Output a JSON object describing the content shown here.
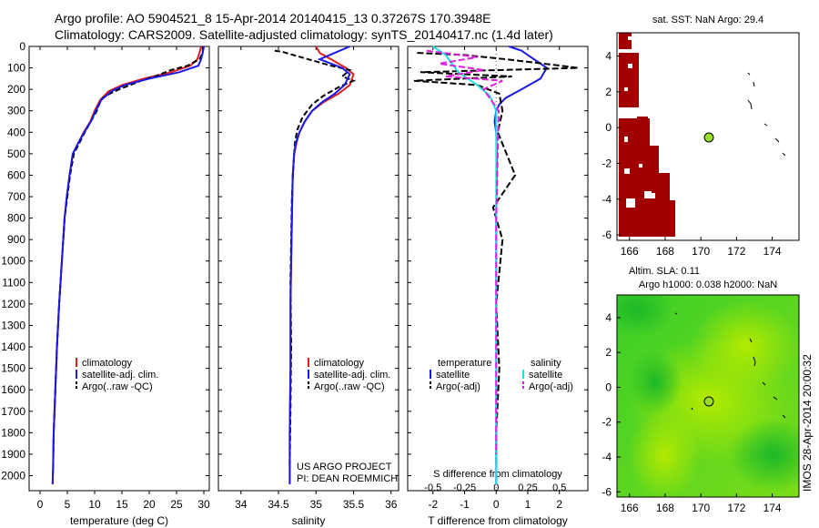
{
  "header": {
    "line1": "Argo profile: AO 5904521_8 15-Apr-2014 20140415_13 0.37267S 170.3948E",
    "line2": "Climatology: CARS2009. Satellite-adjusted climatology: synTS_20140417.nc (1.4d later)"
  },
  "side_note": "IMOS 28-Apr-2014 20:00:32",
  "colors": {
    "climatology": "#e02020",
    "satellite": "#1a1ae6",
    "argo": "#000000",
    "salinity_sat": "#20e0e0",
    "salinity_argo": "#e020e0",
    "sst_land": "#a00000",
    "sla_light": "#a8e600",
    "sla_dark": "#22c41a",
    "marker": "#9ade28"
  },
  "chart_data": [
    {
      "type": "line",
      "name": "temperature",
      "xlabel": "temperature (deg C)",
      "ylabel": "",
      "xlim": [
        -2,
        31
      ],
      "ylim": [
        2070,
        0
      ],
      "xticks": [
        "0",
        "5",
        "10",
        "15",
        "20",
        "25",
        "30"
      ],
      "xtick_values": [
        0,
        5,
        10,
        15,
        20,
        25,
        30
      ],
      "yticks": [
        0,
        100,
        200,
        300,
        400,
        500,
        600,
        700,
        800,
        900,
        1000,
        1100,
        1200,
        1300,
        1400,
        1500,
        1600,
        1700,
        1800,
        1900,
        2000
      ],
      "legend": [
        "climatology",
        "satellite-adj. clim.",
        "Argo(..raw -QC)"
      ],
      "series": [
        {
          "name": "climatology",
          "x": [
            29.5,
            29.2,
            28.8,
            27.5,
            24.0,
            19.0,
            15.0,
            12.5,
            11.0,
            10.0,
            9.2,
            8.0,
            7.0,
            6.0,
            5.4,
            4.9,
            4.5,
            4.0,
            3.5,
            3.1,
            2.8,
            2.5,
            2.4,
            2.3
          ],
          "y": [
            0,
            30,
            60,
            90,
            120,
            150,
            180,
            210,
            250,
            300,
            350,
            400,
            450,
            500,
            600,
            700,
            800,
            1000,
            1200,
            1400,
            1600,
            1800,
            1950,
            2040
          ]
        },
        {
          "name": "satellite-adj. clim.",
          "x": [
            30.0,
            29.8,
            29.5,
            29.0,
            25.5,
            20.0,
            15.5,
            13.0,
            11.2,
            10.2,
            9.3,
            8.1,
            7.0,
            6.0,
            5.4,
            4.9,
            4.5,
            4.0,
            3.5,
            3.1,
            2.8,
            2.5,
            2.4,
            2.3
          ],
          "y": [
            0,
            30,
            60,
            90,
            120,
            150,
            180,
            210,
            250,
            300,
            350,
            400,
            450,
            500,
            600,
            700,
            800,
            1000,
            1200,
            1400,
            1600,
            1800,
            1950,
            2040
          ]
        },
        {
          "name": "Argo(..raw -QC)",
          "x": [
            29.8,
            29.8,
            29.2,
            27.0,
            24.0,
            21.0,
            18.5,
            16.5,
            14.5,
            12.8,
            11.5,
            11.0,
            10.4,
            9.3,
            8.2,
            7.2,
            6.2,
            5.5,
            5.0,
            4.5,
            4.0,
            3.5,
            3.1,
            2.8,
            2.5,
            2.4
          ],
          "y": [
            0,
            30,
            60,
            90,
            110,
            140,
            160,
            180,
            200,
            220,
            240,
            260,
            300,
            350,
            400,
            450,
            500,
            600,
            700,
            800,
            1000,
            1200,
            1400,
            1600,
            1800,
            1950
          ]
        }
      ]
    },
    {
      "type": "line",
      "name": "salinity",
      "xlabel": "salinity",
      "ylabel": "",
      "xlim": [
        33.7,
        36.1
      ],
      "ylim": [
        2070,
        0
      ],
      "xticks": [
        "34",
        "34.5",
        "35",
        "35.5",
        "36"
      ],
      "xtick_values": [
        34,
        34.5,
        35,
        35.5,
        36
      ],
      "legend": [
        "climatology",
        "satellite-adj. clim.",
        "Argo(..raw -QC)"
      ],
      "annotation": [
        "US ARGO PROJECT",
        "PI: DEAN ROEMMICH"
      ],
      "series": [
        {
          "name": "climatology",
          "x": [
            35.0,
            35.05,
            35.2,
            35.4,
            35.5,
            35.45,
            35.3,
            35.1,
            34.95,
            34.85,
            34.78,
            34.74,
            34.71,
            34.69,
            34.68,
            34.67,
            34.66,
            34.66,
            34.65,
            34.65
          ],
          "y": [
            0,
            30,
            60,
            100,
            130,
            180,
            220,
            260,
            300,
            350,
            400,
            450,
            500,
            600,
            800,
            1000,
            1200,
            1500,
            1800,
            2040
          ]
        },
        {
          "name": "satellite-adj. clim.",
          "x": [
            35.45,
            35.25,
            35.05,
            35.35,
            35.45,
            35.38,
            35.25,
            35.08,
            34.95,
            34.85,
            34.78,
            34.73,
            34.71,
            34.69,
            34.68,
            34.67,
            34.66,
            34.66,
            34.65,
            34.65
          ],
          "y": [
            0,
            30,
            60,
            100,
            130,
            180,
            220,
            260,
            300,
            350,
            400,
            450,
            500,
            600,
            800,
            1000,
            1200,
            1500,
            1800,
            2040
          ]
        },
        {
          "name": "Argo(..raw -QC)",
          "x": [
            34.45,
            34.55,
            34.8,
            35.2,
            35.45,
            35.35,
            35.5,
            35.3,
            35.1,
            34.95,
            34.82,
            34.75,
            34.72,
            34.7,
            34.68,
            34.67,
            34.66,
            34.67,
            34.66,
            34.65
          ],
          "y": [
            20,
            25,
            50,
            90,
            110,
            140,
            160,
            190,
            230,
            270,
            330,
            390,
            450,
            550,
            700,
            900,
            1100,
            1400,
            1700,
            1950
          ]
        }
      ]
    },
    {
      "type": "line",
      "name": "differences",
      "xlabel": "T difference from climatology",
      "xlabel_top": "S difference from climatology",
      "xlim": [
        -2.8,
        2.9
      ],
      "ylim": [
        2070,
        0
      ],
      "xticks": [
        "-2",
        "-1",
        "0",
        "1",
        "2"
      ],
      "xtick_values": [
        -2,
        -1,
        0,
        1,
        2
      ],
      "sticks": [
        "-0.5",
        "-0.25",
        "0",
        "0.25",
        "0.5"
      ],
      "stick_values": [
        -0.5,
        -0.25,
        0,
        0.25,
        0.5
      ],
      "legend_temperature": [
        "temperature",
        "satellite",
        "Argo(-adj)"
      ],
      "legend_salinity": [
        "salinity",
        "satellite",
        "Argo(-adj)"
      ],
      "series": [
        {
          "name": "temperature satellite",
          "x": [
            0.4,
            0.8,
            1.0,
            1.3,
            1.6,
            1.4,
            0.8,
            0.3,
            0.1,
            0.0,
            -0.05,
            0.0,
            0.02,
            0.0,
            0.0,
            0.0,
            0.0,
            0.0
          ],
          "y": [
            0,
            20,
            40,
            70,
            100,
            150,
            200,
            240,
            270,
            300,
            350,
            400,
            500,
            800,
            1100,
            1400,
            1700,
            2040
          ]
        },
        {
          "name": "temperature Argo(-adj)",
          "x": [
            -2.5,
            -1.0,
            0.3,
            1.5,
            2.6,
            -2.4,
            0.5,
            -2.6,
            -0.6,
            0.1,
            0.2,
            0.05,
            0.6,
            -0.1,
            0.2,
            0.0,
            0.1,
            0.0,
            0.0
          ],
          "y": [
            30,
            40,
            60,
            80,
            100,
            120,
            140,
            160,
            180,
            220,
            300,
            400,
            600,
            750,
            900,
            1200,
            1500,
            1800,
            1950
          ]
        },
        {
          "name": "salinity satellite",
          "x": [
            -0.5,
            -0.4,
            -0.35,
            -0.3,
            -0.15,
            -0.05,
            0.0,
            0.0,
            0.0,
            0.0
          ],
          "y": [
            0,
            40,
            80,
            120,
            180,
            230,
            300,
            600,
            1200,
            2040
          ]
        },
        {
          "name": "salinity Argo(-adj)",
          "x": [
            -0.55,
            -0.15,
            -0.45,
            -0.1,
            -0.4,
            0.05,
            -0.1,
            0.02,
            0.0,
            0.0
          ],
          "y": [
            20,
            50,
            80,
            110,
            140,
            160,
            200,
            300,
            800,
            1900
          ]
        }
      ]
    },
    {
      "type": "heatmap",
      "name": "sat-sst-map",
      "title": "sat. SST: NaN Argo: 29.4",
      "xlim": [
        165.3,
        175.5
      ],
      "ylim": [
        -6.3,
        5.3
      ],
      "xticks": [
        "166",
        "168",
        "170",
        "172",
        "174"
      ],
      "xtick_values": [
        166,
        168,
        170,
        172,
        174
      ],
      "yticks": [
        "-6",
        "-4",
        "-2",
        "0",
        "2",
        "4"
      ],
      "ytick_values": [
        -6,
        -4,
        -2,
        0,
        2,
        4
      ],
      "argo_position": [
        170.39,
        -0.37
      ]
    },
    {
      "type": "heatmap",
      "name": "altim-sla-map",
      "title": "Altim. SLA: 0.11",
      "subtitle": "Argo h1000: 0.038 h2000: NaN",
      "xlim": [
        165.3,
        175.5
      ],
      "ylim": [
        -6.3,
        5.3
      ],
      "xticks": [
        "166",
        "168",
        "170",
        "172",
        "174"
      ],
      "xtick_values": [
        166,
        168,
        170,
        172,
        174
      ],
      "yticks": [
        "-6",
        "-4",
        "-2",
        "0",
        "2",
        "4"
      ],
      "ytick_values": [
        -6,
        -4,
        -2,
        0,
        2,
        4
      ],
      "argo_position": [
        170.39,
        -0.37
      ]
    }
  ]
}
